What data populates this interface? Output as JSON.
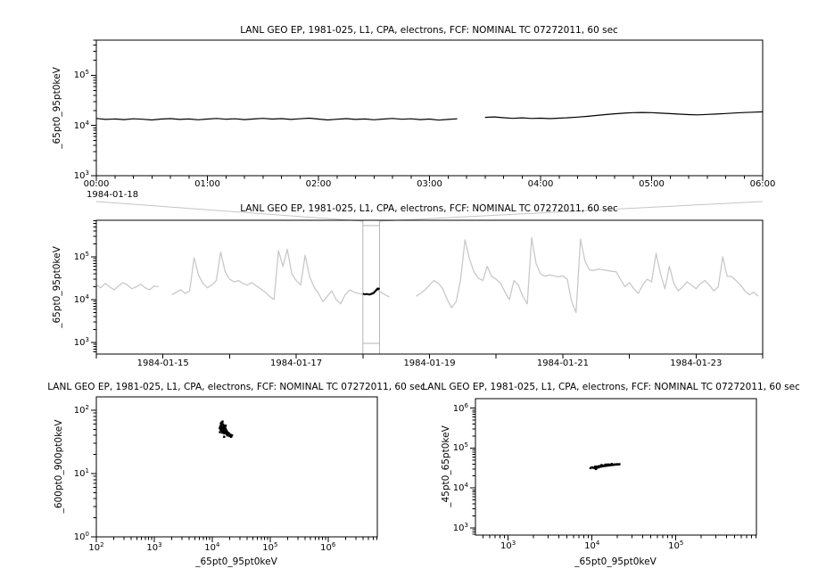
{
  "colors": {
    "foreground": "#000000",
    "background": "#ffffff",
    "context_series": "#c9c9c9",
    "context_box": "#b4b4b4",
    "connector": "#c4c4c4"
  },
  "panels": {
    "top": {
      "title": "LANL GEO EP, 1981-025, L1, CPA, electrons, FCF: NOMINAL TC 07272011, 60 sec",
      "ylabel": "_65pt0_95pt0keV",
      "x_date": "1984-01-18"
    },
    "context": {
      "title": "LANL GEO EP, 1981-025, L1, CPA, electrons, FCF: NOMINAL TC 07272011, 60 sec",
      "ylabel": "_65pt0_95pt0keV"
    },
    "scatter_left": {
      "title": "LANL GEO EP, 1981-025, L1, CPA, electrons, FCF: NOMINAL TC 07272011, 60 sec",
      "xlabel": "_65pt0_95pt0keV",
      "ylabel": "_600pt0_900pt0keV"
    },
    "scatter_right": {
      "title": "LANL GEO EP, 1981-025, L1, CPA, electrons, FCF: NOMINAL TC 07272011, 60 sec",
      "xlabel": "_65pt0_95pt0keV",
      "ylabel": "_45pt0_65pt0keV"
    }
  },
  "chart_data": [
    {
      "type": "line",
      "panel": "top",
      "title": "LANL GEO EP, 1981-025, L1, CPA, electrons, FCF: NOMINAL TC 07272011, 60 sec",
      "ylabel": "_65pt0_95pt0keV",
      "cadence": "60 sec",
      "x_date": "1984-01-18",
      "xlim_hours": [
        0,
        6
      ],
      "x_tick_hours": [
        0,
        1,
        2,
        3,
        4,
        5,
        6
      ],
      "x_tick_labels": [
        "00:00",
        "01:00",
        "02:00",
        "03:00",
        "04:00",
        "05:00",
        "06:00"
      ],
      "ylim_log": [
        3,
        5.7
      ],
      "y_tick_exponents": [
        3,
        4,
        5
      ],
      "series": {
        "name": "_65pt0_95pt0keV",
        "x0_hours": 0,
        "dx_hours": 0.083333,
        "values": [
          13800,
          13200,
          13500,
          13100,
          13600,
          13300,
          12900,
          13400,
          13700,
          13200,
          13500,
          13000,
          13400,
          13800,
          13300,
          13600,
          13100,
          13500,
          13900,
          13400,
          13700,
          13200,
          13600,
          14000,
          13400,
          12900,
          13300,
          13700,
          13200,
          13500,
          13000,
          13400,
          13800,
          13300,
          13600,
          13100,
          13400,
          12800,
          13200,
          13600,
          null,
          null,
          14500,
          14800,
          14300,
          13900,
          14200,
          13800,
          14000,
          13700,
          14000,
          14300,
          14700,
          15200,
          15800,
          16500,
          17100,
          17600,
          18000,
          18200,
          18000,
          17600,
          17200,
          16800,
          16500,
          16300,
          16600,
          16900,
          17300,
          17700,
          18100,
          18400,
          18700
        ]
      }
    },
    {
      "type": "line",
      "panel": "context",
      "title": "LANL GEO EP, 1981-025, L1, CPA, electrons, FCF: NOMINAL TC 07272011, 60 sec",
      "ylabel": "_65pt0_95pt0keV",
      "x_epoch": "1984-01-14",
      "xlim_days": [
        0,
        10
      ],
      "x_tick_days": [
        1,
        3,
        5,
        7,
        9
      ],
      "x_tick_labels": [
        "1984-01-15",
        "1984-01-17",
        "1984-01-19",
        "1984-01-21",
        "1984-01-23"
      ],
      "ylim_log": [
        2.73,
        5.855
      ],
      "y_tick_exponents": [
        3,
        4,
        5
      ],
      "context_box": {
        "start_day": 4.0,
        "end_day": 4.25,
        "interval": "1984-01-18 00:00 to 06:00"
      },
      "series": {
        "name": "_65pt0_95pt0keV",
        "x0_days": 0,
        "dx_days": 0.066667,
        "values": [
          22000,
          19000,
          24000,
          20000,
          17000,
          21000,
          25000,
          22000,
          18000,
          20000,
          23000,
          19000,
          17000,
          21000,
          20000,
          null,
          null,
          13000,
          15000,
          17000,
          14000,
          16000,
          95000,
          38000,
          24000,
          19000,
          22000,
          28000,
          130000,
          45000,
          30000,
          26000,
          28000,
          24000,
          22000,
          25000,
          21000,
          18000,
          15000,
          12000,
          10000,
          140000,
          60000,
          150000,
          40000,
          28000,
          22000,
          110000,
          35000,
          20000,
          14000,
          9000,
          12000,
          16000,
          10000,
          8000,
          13000,
          17000,
          15000,
          14000,
          13500,
          13200,
          14500,
          18000,
          15000,
          13000,
          11500,
          null,
          null,
          null,
          null,
          null,
          12000,
          14000,
          17000,
          22000,
          28000,
          24000,
          18000,
          10000,
          6500,
          9000,
          30000,
          250000,
          90000,
          45000,
          32000,
          28000,
          60000,
          35000,
          30000,
          24000,
          15000,
          10000,
          28000,
          22000,
          12000,
          8000,
          280000,
          70000,
          40000,
          35000,
          38000,
          36000,
          34000,
          36000,
          30000,
          9000,
          5000,
          260000,
          80000,
          50000,
          48000,
          52000,
          50000,
          48000,
          46000,
          45000,
          30000,
          20000,
          25000,
          18000,
          14000,
          22000,
          30000,
          26000,
          120000,
          40000,
          18000,
          60000,
          24000,
          16000,
          20000,
          26000,
          22000,
          18000,
          24000,
          28000,
          22000,
          16000,
          20000,
          100000,
          35000,
          35000,
          28000,
          22000,
          16000,
          13000,
          15000,
          12000
        ]
      },
      "highlight_series": {
        "name": "selected interval 1984-01-18",
        "points": [
          [
            4.0,
            13800
          ],
          [
            4.03,
            13300
          ],
          [
            4.06,
            13600
          ],
          [
            4.1,
            13200
          ],
          [
            4.13,
            13700
          ],
          [
            4.16,
            14200
          ],
          [
            4.2,
            16500
          ],
          [
            4.22,
            18200
          ],
          [
            4.23,
            17600
          ],
          [
            4.25,
            18700
          ]
        ]
      }
    },
    {
      "type": "scatter",
      "panel": "scatter_left",
      "title": "LANL GEO EP, 1981-025, L1, CPA, electrons, FCF: NOMINAL TC 07272011, 60 sec",
      "xlabel": "_65pt0_95pt0keV",
      "ylabel": "_600pt0_900pt0keV",
      "xlim_log": [
        2,
        6.85
      ],
      "x_tick_exponents": [
        2,
        3,
        4,
        5,
        6
      ],
      "ylim_log": [
        0,
        2.21
      ],
      "y_tick_exponents": [
        0,
        1,
        2
      ],
      "points": [
        [
          13500,
          52
        ],
        [
          13800,
          56
        ],
        [
          14000,
          49
        ],
        [
          14200,
          53
        ],
        [
          14400,
          58
        ],
        [
          14500,
          47
        ],
        [
          14700,
          51
        ],
        [
          14900,
          55
        ],
        [
          15000,
          44
        ],
        [
          15200,
          50
        ],
        [
          15400,
          60
        ],
        [
          15500,
          46
        ],
        [
          15700,
          53
        ],
        [
          15900,
          48
        ],
        [
          16000,
          57
        ],
        [
          16200,
          43
        ],
        [
          16400,
          50
        ],
        [
          16600,
          54
        ],
        [
          16800,
          46
        ],
        [
          17000,
          51
        ],
        [
          17300,
          44
        ],
        [
          17500,
          48
        ],
        [
          17800,
          42
        ],
        [
          18000,
          46
        ],
        [
          18300,
          40
        ],
        [
          18600,
          44
        ],
        [
          19000,
          41
        ],
        [
          19500,
          43
        ],
        [
          20000,
          39
        ],
        [
          20600,
          41
        ],
        [
          21200,
          38
        ],
        [
          22000,
          40
        ],
        [
          14100,
          62
        ],
        [
          14600,
          64
        ],
        [
          15100,
          66
        ],
        [
          13600,
          45
        ],
        [
          16100,
          38
        ],
        [
          17100,
          57
        ]
      ]
    },
    {
      "type": "scatter",
      "panel": "scatter_right",
      "title": "LANL GEO EP, 1981-025, L1, CPA, electrons, FCF: NOMINAL TC 07272011, 60 sec",
      "xlabel": "_65pt0_95pt0keV",
      "ylabel": "_45pt0_65pt0keV",
      "xlim_log": [
        2.61,
        5.96
      ],
      "x_tick_exponents": [
        3,
        4,
        5
      ],
      "ylim_log": [
        2.82,
        6.24
      ],
      "y_tick_exponents": [
        3,
        4,
        5,
        6
      ],
      "points": [
        [
          9600,
          31500
        ],
        [
          10000,
          33000
        ],
        [
          10400,
          32000
        ],
        [
          10800,
          32000
        ],
        [
          11000,
          33500
        ],
        [
          11200,
          31000
        ],
        [
          11400,
          34000
        ],
        [
          11600,
          32500
        ],
        [
          11900,
          35000
        ],
        [
          12200,
          34000
        ],
        [
          12500,
          35500
        ],
        [
          12800,
          34500
        ],
        [
          13100,
          36000
        ],
        [
          13400,
          35000
        ],
        [
          13700,
          36500
        ],
        [
          14000,
          35500
        ],
        [
          14300,
          37000
        ],
        [
          14700,
          36000
        ],
        [
          15000,
          37500
        ],
        [
          15400,
          36500
        ],
        [
          15800,
          38000
        ],
        [
          16200,
          37000
        ],
        [
          16600,
          38500
        ],
        [
          17000,
          37500
        ],
        [
          17500,
          38500
        ],
        [
          18000,
          38000
        ],
        [
          18600,
          39000
        ],
        [
          19200,
          38500
        ],
        [
          19800,
          39500
        ],
        [
          20500,
          39000
        ],
        [
          21200,
          39500
        ],
        [
          11100,
          30000
        ],
        [
          10900,
          34500
        ],
        [
          12000,
          33000
        ],
        [
          13000,
          37500
        ],
        [
          15500,
          39000
        ],
        [
          17200,
          40000
        ],
        [
          14500,
          38500
        ]
      ]
    }
  ]
}
